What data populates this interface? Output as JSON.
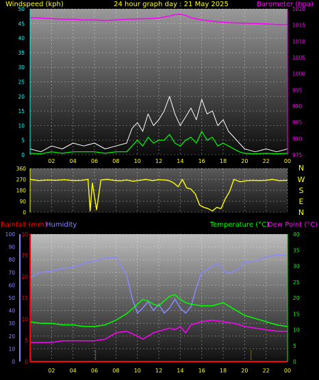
{
  "header": {
    "left_label": "Windspeed (kph)",
    "title": "24 hour graph day : 21 May 2025",
    "right_label": "Barometer (hpa)"
  },
  "bottom_header": {
    "rainfall_label": "Rainfall (mm)",
    "humidity_label": "Humidity",
    "temperature_label": "Temperature (°C)",
    "dewpoint_label": "Dew Point (°C)"
  },
  "compass": [
    "N",
    "W",
    "S",
    "E",
    "N"
  ],
  "x_ticks": [
    "02",
    "04",
    "06",
    "08",
    "10",
    "12",
    "14",
    "16",
    "18",
    "20",
    "22",
    "00"
  ],
  "colors": {
    "wind": "#ffffff",
    "gust_avg": "#00ff00",
    "barometer": "#ff00ff",
    "direction": "#ffff00",
    "humidity": "#8888ff",
    "temperature": "#00ff00",
    "dewpoint": "#ff00ff",
    "rainfall": "#ff0000",
    "axis_yellow": "#ffff00",
    "axis_cyan": "#00ffff"
  },
  "chart_data": [
    {
      "type": "line",
      "title": "",
      "ylim_left": [
        0,
        50
      ],
      "ylim_right": [
        975,
        1020
      ],
      "y_ticks_left": [
        0,
        5,
        10,
        15,
        20,
        25,
        30,
        35,
        40,
        45,
        50
      ],
      "y_ticks_right": [
        975,
        980,
        985,
        990,
        995,
        1000,
        1005,
        1010,
        1015,
        1020
      ],
      "xlim_hours": [
        0,
        24
      ],
      "series": [
        {
          "key": "barometer",
          "axis": "right",
          "x": [
            0,
            1,
            2,
            3,
            4,
            5,
            6,
            7,
            8,
            9,
            10,
            11,
            12,
            13,
            13.5,
            14,
            14.5,
            15,
            16,
            17,
            18,
            19,
            20,
            21,
            22,
            23,
            24
          ],
          "y": [
            1017.3,
            1017.2,
            1017.0,
            1016.8,
            1016.8,
            1016.6,
            1016.6,
            1016.4,
            1016.6,
            1016.8,
            1016.9,
            1017.0,
            1017.2,
            1017.8,
            1018.2,
            1018.4,
            1018.0,
            1017.3,
            1016.6,
            1016.2,
            1015.9,
            1015.7,
            1015.6,
            1015.5,
            1015.4,
            1015.2,
            1015.2
          ]
        },
        {
          "key": "wind_gust",
          "axis": "left",
          "x": [
            0,
            1,
            2,
            3,
            4,
            5,
            6,
            7,
            8,
            9,
            9.5,
            10,
            10.5,
            11,
            11.5,
            12,
            12.5,
            13,
            13.5,
            14,
            14.5,
            15,
            15.5,
            16,
            16.5,
            17,
            17.5,
            18,
            18.5,
            19,
            19.5,
            20,
            21,
            22,
            23,
            24
          ],
          "y": [
            2,
            1,
            3,
            2,
            4,
            3,
            4,
            2,
            3,
            4,
            9,
            11,
            8,
            14,
            10,
            12,
            15,
            20,
            14,
            10,
            13,
            16,
            12,
            19,
            14,
            15,
            10,
            12,
            8,
            6,
            4,
            2,
            1,
            2,
            1,
            2
          ]
        },
        {
          "key": "wind_avg",
          "axis": "left",
          "x": [
            0,
            1,
            2,
            3,
            4,
            5,
            6,
            7,
            8,
            9,
            9.5,
            10,
            10.5,
            11,
            11.5,
            12,
            12.5,
            13,
            13.5,
            14,
            14.5,
            15,
            15.5,
            16,
            16.5,
            17,
            17.5,
            18,
            18.5,
            19,
            19.5,
            20,
            21,
            22,
            23,
            24
          ],
          "y": [
            0.5,
            0.3,
            1,
            0.5,
            1,
            1,
            1,
            0.5,
            1,
            1,
            3,
            5,
            3,
            6,
            4,
            5,
            5,
            7,
            4,
            3,
            5,
            6,
            4,
            8,
            5,
            6,
            3,
            4,
            3,
            2,
            1,
            0.5,
            0.3,
            0.5,
            0.3,
            0.5
          ]
        }
      ]
    },
    {
      "type": "scatter",
      "title": "",
      "ylim": [
        0,
        360
      ],
      "y_ticks": [
        0,
        90,
        180,
        270,
        360
      ],
      "xlim_hours": [
        0,
        24
      ],
      "series": [
        {
          "key": "wind_direction",
          "x": [
            0,
            0.8,
            1.6,
            2.4,
            3.2,
            4.0,
            4.8,
            5.4,
            5.6,
            5.8,
            6.2,
            6.6,
            7.2,
            7.8,
            8.4,
            9.0,
            9.6,
            10.2,
            10.8,
            11.4,
            12.0,
            12.6,
            13.0,
            13.4,
            13.8,
            14.2,
            14.6,
            15.0,
            15.4,
            15.8,
            16.2,
            16.6,
            17.0,
            17.4,
            17.8,
            18.2,
            18.6,
            19.0,
            19.6,
            20.2,
            20.8,
            21.4,
            22.0,
            22.6,
            23.2,
            24
          ],
          "y": [
            270,
            260,
            265,
            262,
            268,
            260,
            262,
            270,
            10,
            240,
            20,
            265,
            270,
            262,
            258,
            265,
            255,
            262,
            270,
            260,
            268,
            265,
            258,
            240,
            210,
            270,
            200,
            190,
            150,
            60,
            40,
            30,
            10,
            40,
            30,
            110,
            170,
            270,
            250,
            260,
            262,
            260,
            262,
            270,
            260,
            262
          ]
        }
      ]
    },
    {
      "type": "line",
      "title": "",
      "ylim_humidity": [
        0,
        100
      ],
      "ylim_rain": [
        0,
        30
      ],
      "ylim_temp": [
        0,
        40
      ],
      "y_ticks_humidity": [
        0,
        10,
        20,
        30,
        40,
        50,
        60,
        70,
        80,
        90,
        100
      ],
      "y_ticks_rain": [
        0,
        5,
        10,
        15,
        20,
        25,
        30
      ],
      "y_ticks_temp": [
        0,
        5,
        10,
        15,
        20,
        25,
        30,
        35,
        40
      ],
      "xlim_hours": [
        0,
        24
      ],
      "rain_marks_hours": [
        6.1,
        20.6
      ],
      "series": [
        {
          "key": "humidity",
          "axis": "humidity",
          "x": [
            0,
            1,
            2,
            3,
            4,
            5,
            6,
            7,
            8,
            8.5,
            9,
            9.5,
            10,
            10.5,
            11,
            11.5,
            12,
            12.5,
            13,
            13.5,
            14,
            14.5,
            15,
            15.5,
            16,
            16.5,
            17,
            17.5,
            18,
            18.5,
            19,
            19.5,
            20,
            21,
            22,
            23,
            24
          ],
          "y": [
            66,
            70,
            71,
            73,
            74,
            77,
            79,
            81,
            82,
            75,
            68,
            50,
            38,
            42,
            47,
            40,
            45,
            38,
            42,
            49,
            42,
            38,
            43,
            58,
            70,
            72,
            75,
            77,
            72,
            69,
            71,
            73,
            78,
            79,
            82,
            84,
            83
          ]
        },
        {
          "key": "temperature",
          "axis": "temp",
          "x": [
            0,
            1,
            2,
            3,
            4,
            5,
            6,
            7,
            8,
            9,
            10,
            10.5,
            11,
            11.5,
            12,
            12.5,
            13,
            13.5,
            14,
            14.5,
            15,
            16,
            17,
            18,
            19,
            20,
            21,
            22,
            23,
            24
          ],
          "y": [
            12.5,
            12,
            12,
            11.5,
            11.5,
            11,
            11,
            11.5,
            13,
            15,
            18,
            19.5,
            19,
            18,
            17.5,
            19,
            20.5,
            21,
            19.5,
            18.5,
            18,
            17.5,
            17.5,
            18.5,
            16.5,
            14.5,
            13.5,
            12.5,
            11.5,
            11
          ]
        },
        {
          "key": "dewpoint",
          "axis": "temp",
          "x": [
            0,
            1,
            2,
            3,
            4,
            5,
            6,
            7,
            8,
            9,
            10,
            10.5,
            11,
            11.5,
            12,
            12.5,
            13,
            13.5,
            14,
            14.5,
            15,
            16,
            17,
            18,
            19,
            20,
            21,
            22,
            23,
            24
          ],
          "y": [
            6,
            6,
            6,
            6.5,
            6.5,
            6.5,
            6.5,
            7,
            9,
            9.5,
            8,
            7,
            8,
            9,
            9.5,
            10,
            10.5,
            10,
            11,
            9,
            11.5,
            12.5,
            13,
            12.5,
            12,
            11,
            10.5,
            10,
            9.5,
            9.5
          ]
        },
        {
          "key": "rainfall",
          "axis": "rain",
          "x": [
            0,
            24
          ],
          "y": [
            0,
            0
          ]
        }
      ]
    }
  ]
}
